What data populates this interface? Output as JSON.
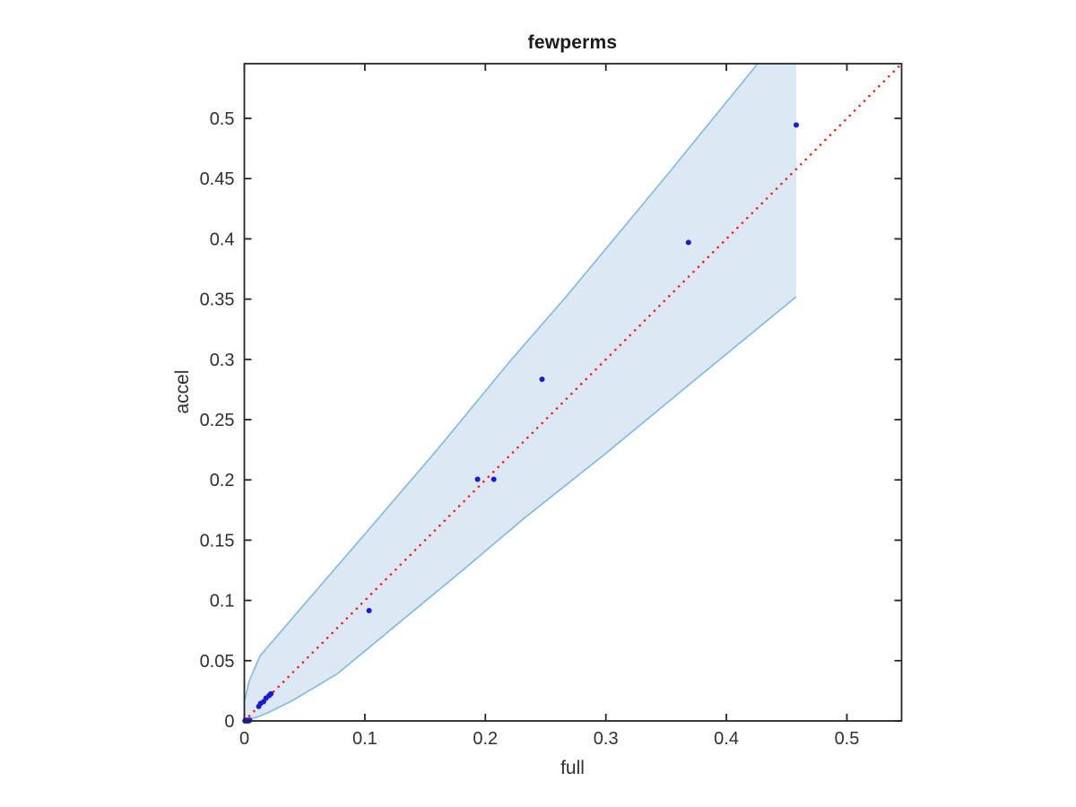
{
  "figure": {
    "background": "#ffffff"
  },
  "chart_data": {
    "type": "scatter",
    "title": "fewperms",
    "xlabel": "full",
    "ylabel": "accel",
    "xlim": [
      0,
      0.5454
    ],
    "ylim": [
      0,
      0.5454
    ],
    "grid": false,
    "legend": null,
    "box": true,
    "tick_direction": "in",
    "axis_color": "#262626",
    "tick_label_color": "#303030",
    "x_ticks": [
      0,
      0.1,
      0.2,
      0.3,
      0.4,
      0.5
    ],
    "x_tick_labels": [
      "0",
      "0.1",
      "0.2",
      "0.3",
      "0.4",
      "0.5"
    ],
    "y_ticks": [
      0,
      0.05,
      0.1,
      0.15,
      0.2,
      0.25,
      0.3,
      0.35,
      0.4,
      0.45,
      0.5
    ],
    "y_tick_labels": [
      "0",
      "0.05",
      "0.1",
      "0.15",
      "0.2",
      "0.25",
      "0.3",
      "0.35",
      "0.4",
      "0.45",
      "0.5"
    ],
    "series": [
      {
        "name": "confidence-band",
        "type": "band",
        "fill_color": "#dce9f4",
        "edge_color": "#86bbdc",
        "upper": [
          [
            0,
            0.016
          ],
          [
            0.004,
            0.033
          ],
          [
            0.013,
            0.054
          ],
          [
            0.05,
            0.097
          ],
          [
            0.1,
            0.155
          ],
          [
            0.16,
            0.225
          ],
          [
            0.22,
            0.298
          ],
          [
            0.267,
            0.352
          ],
          [
            0.35,
            0.452
          ],
          [
            0.426,
            0.5454
          ]
        ],
        "lower": [
          [
            0,
            0.001
          ],
          [
            0.01,
            0.003
          ],
          [
            0.02,
            0.007
          ],
          [
            0.04,
            0.017
          ],
          [
            0.077,
            0.039
          ],
          [
            0.129,
            0.082
          ],
          [
            0.18,
            0.124
          ],
          [
            0.232,
            0.168
          ],
          [
            0.3,
            0.222
          ],
          [
            0.38,
            0.288
          ],
          [
            0.458,
            0.352
          ]
        ],
        "right_edge_x": 0.458
      },
      {
        "name": "identity-line",
        "type": "line",
        "style": "dotted",
        "color": "#ff1414",
        "points": [
          [
            0,
            0
          ],
          [
            0.5454,
            0.5454
          ]
        ]
      },
      {
        "name": "accel-vs-full",
        "type": "scatter",
        "marker": "dot",
        "color": "#1a1ad2",
        "points": [
          [
            0.0005,
            0.0
          ],
          [
            0.001,
            0.0005
          ],
          [
            0.002,
            0.0
          ],
          [
            0.003,
            0.0005
          ],
          [
            0.0035,
            0.0
          ],
          [
            0.0045,
            0.0005
          ],
          [
            0.012,
            0.012
          ],
          [
            0.0135,
            0.0145
          ],
          [
            0.016,
            0.016
          ],
          [
            0.018,
            0.019
          ],
          [
            0.0205,
            0.021
          ],
          [
            0.022,
            0.0225
          ],
          [
            0.1035,
            0.0915
          ],
          [
            0.1935,
            0.2005
          ],
          [
            0.207,
            0.2005
          ],
          [
            0.247,
            0.2835
          ],
          [
            0.3685,
            0.397
          ],
          [
            0.458,
            0.4945
          ]
        ]
      }
    ]
  }
}
